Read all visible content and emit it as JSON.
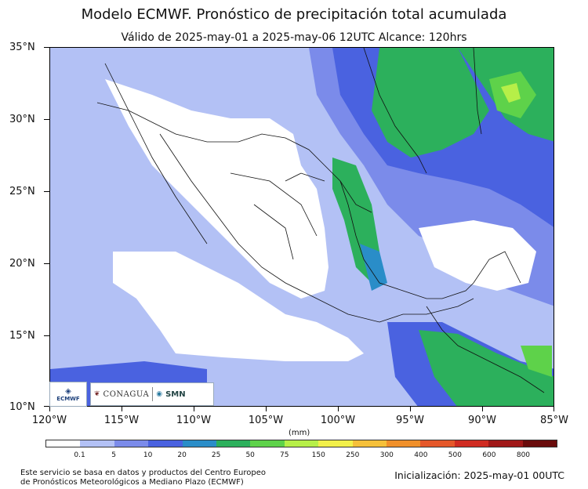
{
  "title": "Modelo ECMWF. Pronóstico de precipitación total acumulada",
  "subtitle": "Válido de 2025-may-01 a 2025-may-06 12UTC   Alcance: 120hrs",
  "map": {
    "lat_ticks": [
      "35°N",
      "30°N",
      "25°N",
      "20°N",
      "15°N",
      "10°N"
    ],
    "lon_ticks": [
      "120°W",
      "115°W",
      "110°W",
      "105°W",
      "100°W",
      "95°W",
      "90°W",
      "85°W"
    ],
    "extent": {
      "lon_min": -120,
      "lon_max": -85,
      "lat_min": 10,
      "lat_max": 35
    }
  },
  "legend": {
    "unit": "(mm)",
    "levels": [
      "0.1",
      "5",
      "10",
      "20",
      "25",
      "50",
      "75",
      "150",
      "250",
      "300",
      "400",
      "500",
      "600",
      "800"
    ],
    "colors": [
      "#ffffff",
      "#b3c1f5",
      "#7b8bea",
      "#4a62e0",
      "#2a8dc8",
      "#2cb05c",
      "#5ed24a",
      "#b6ef48",
      "#f2f04a",
      "#f5c03a",
      "#f0902a",
      "#e5582a",
      "#d02c22",
      "#a01818",
      "#6a0c0c"
    ]
  },
  "logos": {
    "ecmwf": "ECMWF",
    "conagua": "CONAGUA",
    "smn": "SMN"
  },
  "footer": {
    "left_line1": "Este servicio se basa en datos y productos del Centro Europeo",
    "left_line2": "de Pronósticos Meteorológicos a Mediano Plazo (ECMWF)",
    "right": "Inicialización: 2025-may-01 00UTC"
  }
}
